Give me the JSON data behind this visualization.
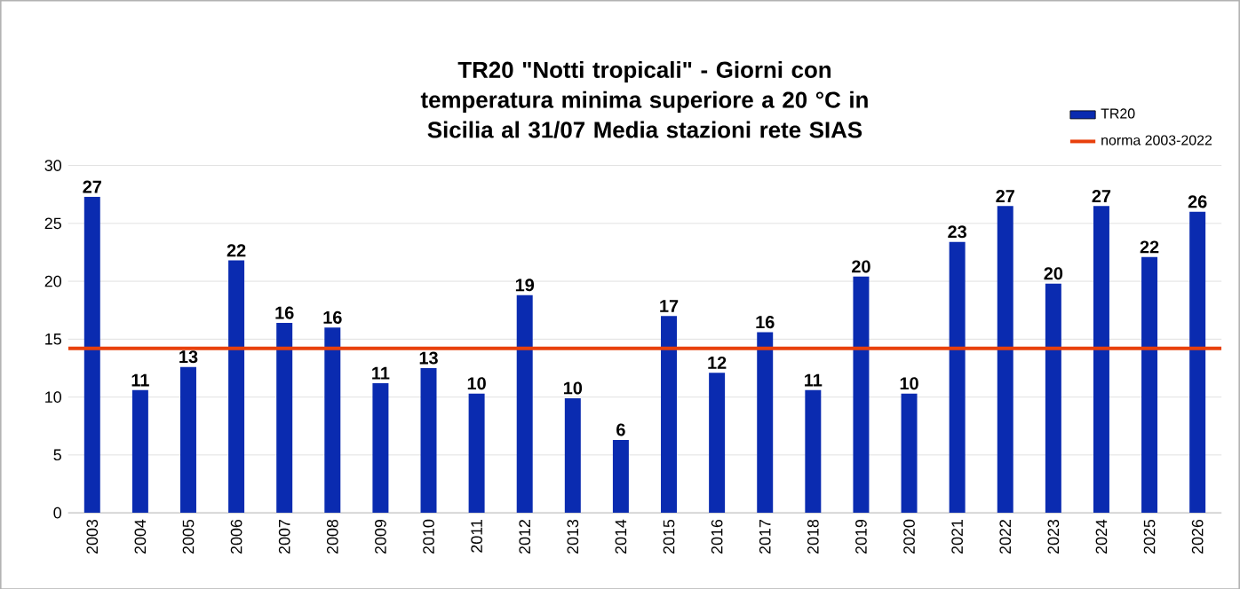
{
  "chart_data": {
    "type": "bar",
    "title": "TR20 \"Notti tropicali\" - Giorni con temperatura minima superiore  a 20 °C in Sicilia al 31/07 Media stazioni rete SIAS",
    "categories": [
      "2003",
      "2004",
      "2005",
      "2006",
      "2007",
      "2008",
      "2009",
      "2010",
      "2011",
      "2012",
      "2013",
      "2014",
      "2015",
      "2016",
      "2017",
      "2018",
      "2019",
      "2020",
      "2021",
      "2022",
      "2023",
      "2024",
      "2025",
      "2026"
    ],
    "series": [
      {
        "name": "TR20",
        "color": "#0a2bb0",
        "values": [
          27.3,
          10.6,
          12.6,
          21.8,
          16.4,
          16.0,
          11.2,
          12.5,
          10.3,
          18.8,
          9.9,
          6.3,
          17.0,
          12.1,
          15.6,
          10.6,
          20.4,
          10.3,
          23.4,
          26.5,
          19.8,
          26.5,
          22.1,
          26.0
        ],
        "value_labels": [
          "27",
          "11",
          "13",
          "22",
          "16",
          "16",
          "11",
          "13",
          "10",
          "19",
          "10",
          "6",
          "17",
          "12",
          "16",
          "11",
          "20",
          "10",
          "23",
          "27",
          "20",
          "27",
          "22",
          "26"
        ]
      }
    ],
    "ref_lines": [
      {
        "axis": "y",
        "value": 14.2,
        "label": "norma 2003-2022",
        "color": "#e8400c"
      }
    ],
    "ylim": [
      0,
      30
    ],
    "yticks": [
      0,
      5,
      10,
      15,
      20,
      25,
      30
    ],
    "grid": "y",
    "legend": "top right"
  }
}
